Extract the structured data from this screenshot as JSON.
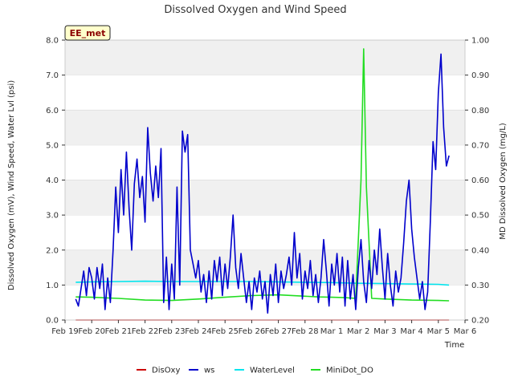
{
  "chart_data": {
    "type": "line",
    "title": "Dissolved Oxygen and Wind Speed",
    "xlabel": "Time",
    "ylabel_left": "Dissolved Oxygen (mV), Wind Speed, Water Lvl (psi)",
    "ylabel_right": "MD Dissolved Oxygen (mg/L)",
    "badge": "EE_met",
    "x_ticks": [
      "Feb 19",
      "Feb 20",
      "Feb 21",
      "Feb 22",
      "Feb 23",
      "Feb 24",
      "Feb 25",
      "Feb 26",
      "Feb 27",
      "Feb 28",
      "Mar 1",
      "Mar 2",
      "Mar 3",
      "Mar 4",
      "Mar 5",
      "Mar 6"
    ],
    "xlim": [
      0,
      15
    ],
    "ylim_left": [
      0,
      8
    ],
    "ylim_right": [
      0.2,
      1.0
    ],
    "y_ticks_left": [
      "0.0",
      "1.0",
      "2.0",
      "3.0",
      "4.0",
      "5.0",
      "6.0",
      "7.0",
      "8.0"
    ],
    "y_ticks_right": [
      "0.20",
      "0.30",
      "0.40",
      "0.50",
      "0.60",
      "0.70",
      "0.80",
      "0.90",
      "1.00"
    ],
    "grid": "horizontal bands",
    "legend_position": "bottom",
    "series": [
      {
        "name": "DisOxy",
        "color": "#cc0000",
        "axis": "left",
        "x": [
          0.4,
          14.4
        ],
        "y": [
          0.0,
          0.0
        ]
      },
      {
        "name": "ws",
        "color": "#0000cc",
        "axis": "left",
        "x": [
          0.4,
          0.5,
          0.6,
          0.7,
          0.8,
          0.9,
          1.0,
          1.1,
          1.2,
          1.3,
          1.4,
          1.5,
          1.6,
          1.7,
          1.8,
          1.9,
          2.0,
          2.1,
          2.2,
          2.3,
          2.4,
          2.5,
          2.6,
          2.7,
          2.8,
          2.9,
          3.0,
          3.1,
          3.2,
          3.3,
          3.4,
          3.5,
          3.6,
          3.7,
          3.8,
          3.9,
          4.0,
          4.1,
          4.2,
          4.3,
          4.4,
          4.5,
          4.6,
          4.7,
          4.8,
          4.9,
          5.0,
          5.1,
          5.2,
          5.3,
          5.4,
          5.5,
          5.6,
          5.7,
          5.8,
          5.9,
          6.0,
          6.1,
          6.2,
          6.3,
          6.4,
          6.5,
          6.6,
          6.7,
          6.8,
          6.9,
          7.0,
          7.1,
          7.2,
          7.3,
          7.4,
          7.5,
          7.6,
          7.7,
          7.8,
          7.9,
          8.0,
          8.1,
          8.2,
          8.3,
          8.4,
          8.5,
          8.6,
          8.7,
          8.8,
          8.9,
          9.0,
          9.1,
          9.2,
          9.3,
          9.4,
          9.5,
          9.6,
          9.7,
          9.8,
          9.9,
          10.0,
          10.1,
          10.2,
          10.3,
          10.4,
          10.5,
          10.6,
          10.7,
          10.8,
          10.9,
          11.0,
          11.1,
          11.2,
          11.3,
          11.4,
          11.5,
          11.6,
          11.7,
          11.8,
          11.9,
          12.0,
          12.1,
          12.2,
          12.3,
          12.4,
          12.5,
          12.6,
          12.7,
          12.8,
          12.9,
          13.0,
          13.1,
          13.2,
          13.3,
          13.4,
          13.5,
          13.6,
          13.7,
          13.8,
          13.9,
          14.0,
          14.1,
          14.2,
          14.3,
          14.4
        ],
        "y": [
          0.6,
          0.4,
          0.9,
          1.4,
          0.7,
          1.5,
          1.2,
          0.6,
          1.5,
          0.9,
          1.6,
          0.3,
          1.2,
          0.5,
          2.0,
          3.8,
          2.5,
          4.3,
          3.0,
          4.8,
          3.2,
          2.0,
          3.9,
          4.6,
          3.5,
          4.1,
          2.8,
          5.5,
          4.2,
          3.4,
          4.4,
          3.5,
          4.9,
          0.5,
          1.8,
          0.3,
          1.6,
          0.6,
          3.8,
          1.0,
          5.4,
          4.8,
          5.3,
          2.0,
          1.6,
          1.2,
          1.7,
          0.8,
          1.3,
          0.5,
          1.4,
          0.6,
          1.7,
          1.1,
          1.8,
          0.7,
          1.6,
          0.9,
          1.8,
          3.0,
          1.5,
          0.9,
          1.9,
          1.2,
          0.5,
          1.1,
          0.3,
          1.2,
          0.8,
          1.4,
          0.6,
          1.1,
          0.2,
          1.3,
          0.7,
          1.6,
          0.5,
          1.4,
          0.9,
          1.3,
          1.8,
          1.0,
          2.5,
          1.2,
          1.9,
          0.6,
          1.4,
          0.9,
          1.7,
          0.7,
          1.3,
          0.5,
          1.2,
          2.3,
          1.4,
          0.4,
          1.6,
          1.0,
          1.9,
          0.8,
          1.8,
          0.4,
          1.7,
          0.6,
          1.3,
          0.3,
          1.5,
          2.3,
          1.1,
          0.5,
          1.7,
          0.9,
          2.0,
          1.3,
          2.6,
          1.5,
          0.6,
          1.9,
          1.0,
          0.4,
          1.4,
          0.8,
          1.2,
          2.2,
          3.4,
          4.0,
          2.6,
          1.8,
          1.2,
          0.6,
          1.1,
          0.3,
          0.8,
          2.8,
          5.1,
          4.3,
          6.5,
          7.6,
          5.5,
          4.4,
          4.7
        ]
      },
      {
        "name": "WaterLevel",
        "color": "#00e5ee",
        "axis": "left",
        "x": [
          0.4,
          1.0,
          2.0,
          3.0,
          4.0,
          5.0,
          6.0,
          7.0,
          8.0,
          9.0,
          10.0,
          11.0,
          12.0,
          13.0,
          14.0,
          14.4
        ],
        "y": [
          1.08,
          1.09,
          1.1,
          1.11,
          1.1,
          1.1,
          1.1,
          1.1,
          1.09,
          1.08,
          1.07,
          1.05,
          1.04,
          1.03,
          1.02,
          1.0
        ]
      },
      {
        "name": "MiniDot_DO",
        "color": "#22dd22",
        "axis": "right",
        "x": [
          0.4,
          1.0,
          2.0,
          3.0,
          4.0,
          5.0,
          6.0,
          7.0,
          8.0,
          9.0,
          9.5,
          10.0,
          10.5,
          10.9,
          11.1,
          11.2,
          11.3,
          11.5,
          12.0,
          13.0,
          14.0,
          14.4
        ],
        "y": [
          0.266,
          0.265,
          0.262,
          0.257,
          0.256,
          0.26,
          0.265,
          0.27,
          0.272,
          0.268,
          0.266,
          0.265,
          0.264,
          0.262,
          0.6,
          0.975,
          0.58,
          0.262,
          0.26,
          0.257,
          0.256,
          0.255
        ]
      }
    ]
  }
}
